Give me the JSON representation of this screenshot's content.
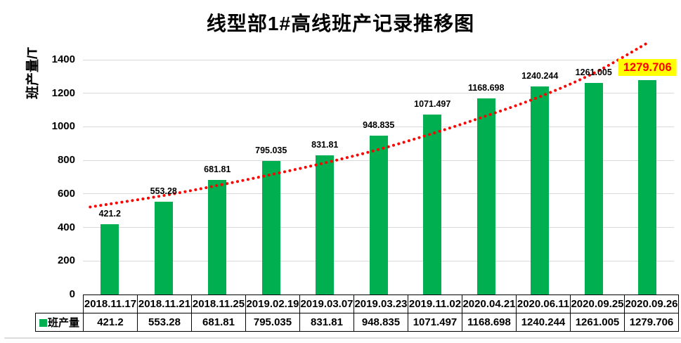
{
  "title": "线型部1#高线班产记录推移图",
  "y_axis": {
    "title": "班产量/T",
    "tick_labels": [
      "0",
      "200",
      "400",
      "600",
      "800",
      "1000",
      "1200",
      "1400"
    ]
  },
  "legend": {
    "label": "班产量",
    "swatch_color": "#00B050"
  },
  "colors": {
    "bar": "#00B050",
    "trendline": "#FF0000",
    "gridline": "#D9D9D9",
    "highlight_background": "#FFFF00",
    "highlight_text": "#FF0000",
    "text": "#000000"
  },
  "chart_data": {
    "type": "bar",
    "title": "线型部1#高线班产记录推移图",
    "xlabel": "",
    "ylabel": "班产量/T",
    "ylim": [
      0,
      1400
    ],
    "y_ticks": [
      0,
      200,
      400,
      600,
      800,
      1000,
      1200,
      1400
    ],
    "grid": true,
    "legend_position": "bottom-left-table",
    "categories": [
      "2018.11.17",
      "2018.11.21",
      "2018.11.25",
      "2019.02.19",
      "2019.03.07",
      "2019.03.23",
      "2019.11.02",
      "2020.04.21",
      "2020.06.11",
      "2020.09.25",
      "2020.09.26"
    ],
    "series": [
      {
        "name": "班产量",
        "color": "#00B050",
        "values": [
          421.2,
          553.28,
          681.81,
          795.035,
          831.81,
          948.835,
          1071.497,
          1168.698,
          1240.244,
          1261.005,
          1279.706
        ]
      }
    ],
    "data_labels": [
      "421.2",
      "553.28",
      "681.81",
      "795.035",
      "831.81",
      "948.835",
      "1071.497",
      "1168.698",
      "1240.244",
      "1261.005",
      "1279.706"
    ],
    "highlighted_label_index": 10,
    "trendline": {
      "shape": "exponential",
      "style": "dotted",
      "color": "#FF0000",
      "values_at_categories": [
        540,
        590,
        650,
        715,
        785,
        865,
        960,
        1065,
        1180,
        1320,
        1500
      ]
    }
  }
}
